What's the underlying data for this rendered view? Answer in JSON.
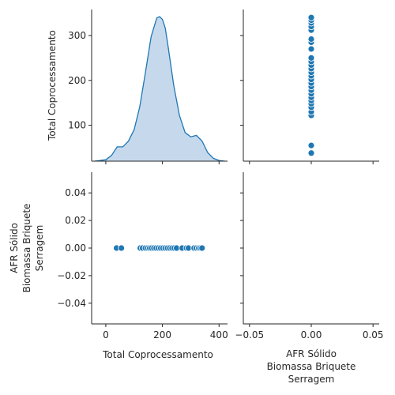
{
  "chart_data": {
    "type": "pairplot",
    "variables": [
      "Total Coprocessamento",
      "AFR Sólido\nBiomassa Briquete\nSerragem"
    ],
    "colors": {
      "series": "#1f77b4",
      "kde_fill": "#c6d9ec",
      "axis": "#262626"
    },
    "diag_00": {
      "type": "area",
      "xlim": [
        -50,
        430
      ],
      "xticks": [
        0,
        200,
        400
      ],
      "x": [
        -40,
        -20,
        0,
        20,
        40,
        60,
        80,
        100,
        120,
        140,
        160,
        180,
        190,
        200,
        210,
        220,
        240,
        260,
        280,
        300,
        320,
        340,
        360,
        380,
        400,
        420
      ],
      "density_rel": [
        0.0,
        0.005,
        0.01,
        0.04,
        0.1,
        0.1,
        0.14,
        0.22,
        0.38,
        0.62,
        0.87,
        1.0,
        1.01,
        0.99,
        0.93,
        0.8,
        0.53,
        0.32,
        0.2,
        0.17,
        0.18,
        0.14,
        0.06,
        0.02,
        0.005,
        0.0
      ]
    },
    "panel_01": {
      "type": "scatter",
      "xlim": [
        -0.055,
        0.055
      ],
      "ylim": [
        20,
        358
      ],
      "xticks": [],
      "yticks": [],
      "x": 0,
      "y": [
        38,
        55,
        122,
        130,
        140,
        148,
        155,
        162,
        170,
        178,
        186,
        194,
        202,
        210,
        218,
        226,
        234,
        242,
        250,
        270,
        285,
        292,
        312,
        320,
        328,
        334,
        340
      ]
    },
    "panel_10": {
      "type": "scatter",
      "xlim": [
        -50,
        430
      ],
      "ylim": [
        -0.055,
        0.055
      ],
      "xticks": [],
      "yticks": [
        "0.04",
        "0.02",
        "0.00",
        "−0.02",
        "−0.04"
      ],
      "ytick_values": [
        0.04,
        0.02,
        0.0,
        -0.02,
        -0.04
      ],
      "y": 0,
      "x": [
        38,
        55,
        122,
        130,
        140,
        148,
        155,
        162,
        170,
        178,
        186,
        194,
        202,
        210,
        218,
        226,
        234,
        242,
        250,
        270,
        285,
        292,
        312,
        320,
        328,
        334,
        340
      ]
    },
    "panel_11": {
      "type": "empty",
      "xlim": [
        -0.055,
        0.055
      ],
      "xticks": [
        "−0.05",
        "0.00",
        "0.05"
      ],
      "xtick_values": [
        -0.05,
        0.0,
        0.05
      ]
    },
    "row0_yaxis": {
      "label": "Total Coprocessamento",
      "ylim": [
        20,
        358
      ],
      "yticks": [
        "100",
        "200",
        "300"
      ],
      "ytick_values": [
        100,
        200,
        300
      ]
    },
    "col0_xaxis": {
      "label": "Total Coprocessamento",
      "xticks": [
        "0",
        "200",
        "400"
      ],
      "xtick_values": [
        0,
        200,
        400
      ]
    },
    "row1_ylabel": [
      "AFR Sólido",
      "Biomassa Briquete",
      "Serragem"
    ],
    "col1_xlabel": [
      "AFR Sólido",
      "Biomassa Briquete",
      "Serragem"
    ]
  }
}
